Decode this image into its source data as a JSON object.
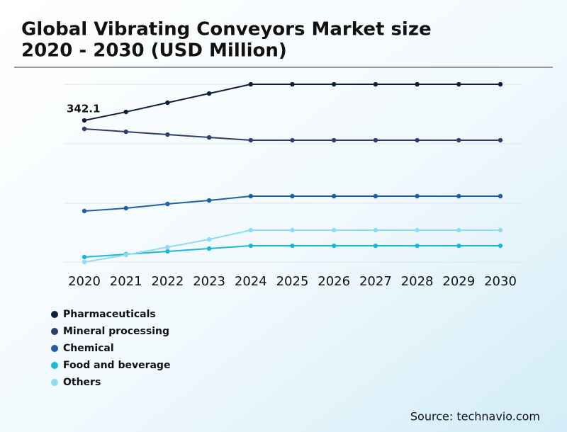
{
  "chart_data": {
    "type": "line",
    "title": [
      "Global Vibrating Conveyors Market size",
      "2020 - 2030 (USD Million)"
    ],
    "x": [
      "2020",
      "2021",
      "2022",
      "2023",
      "2024",
      "2025",
      "2026",
      "2027",
      "2028",
      "2029",
      "2030"
    ],
    "series": [
      {
        "name": "Pharmaceuticals",
        "color": "#0d1f3c",
        "values": [
          342.1,
          362.6,
          384.9,
          407.1,
          429.3,
          429.3,
          429.3,
          429.3,
          429.3,
          429.3,
          429.3
        ],
        "value_labels": [
          "342.1",
          null,
          null,
          null,
          null,
          null,
          null,
          null,
          null,
          null,
          null
        ]
      },
      {
        "name": "Mineral processing",
        "color": "#2c3e6b",
        "values": [
          321.6,
          314.7,
          307.9,
          301.0,
          294.2,
          294.2,
          294.2,
          294.2,
          294.2,
          294.2,
          294.2
        ]
      },
      {
        "name": "Chemical",
        "color": "#1f5fa8",
        "values": [
          123.2,
          130.0,
          140.3,
          148.8,
          159.1,
          159.1,
          159.1,
          159.1,
          159.1,
          159.1,
          159.1
        ]
      },
      {
        "name": "Food and beverage",
        "color": "#1ab8d6",
        "values": [
          12.0,
          18.8,
          25.7,
          32.5,
          39.3,
          39.3,
          39.3,
          39.3,
          39.3,
          39.3,
          39.3
        ]
      },
      {
        "name": "Others",
        "color": "#8ddcef",
        "values": [
          0,
          17.1,
          35.9,
          54.7,
          77.0,
          77.0,
          77.0,
          77.0,
          77.0,
          77.0,
          77.0
        ]
      }
    ],
    "ylim": [
      0,
      440
    ],
    "yticks": [
      0,
      142,
      286,
      429
    ],
    "ytick_labels": false,
    "grid": true,
    "legend": "bottom-left",
    "source": "Source: technavio.com"
  }
}
